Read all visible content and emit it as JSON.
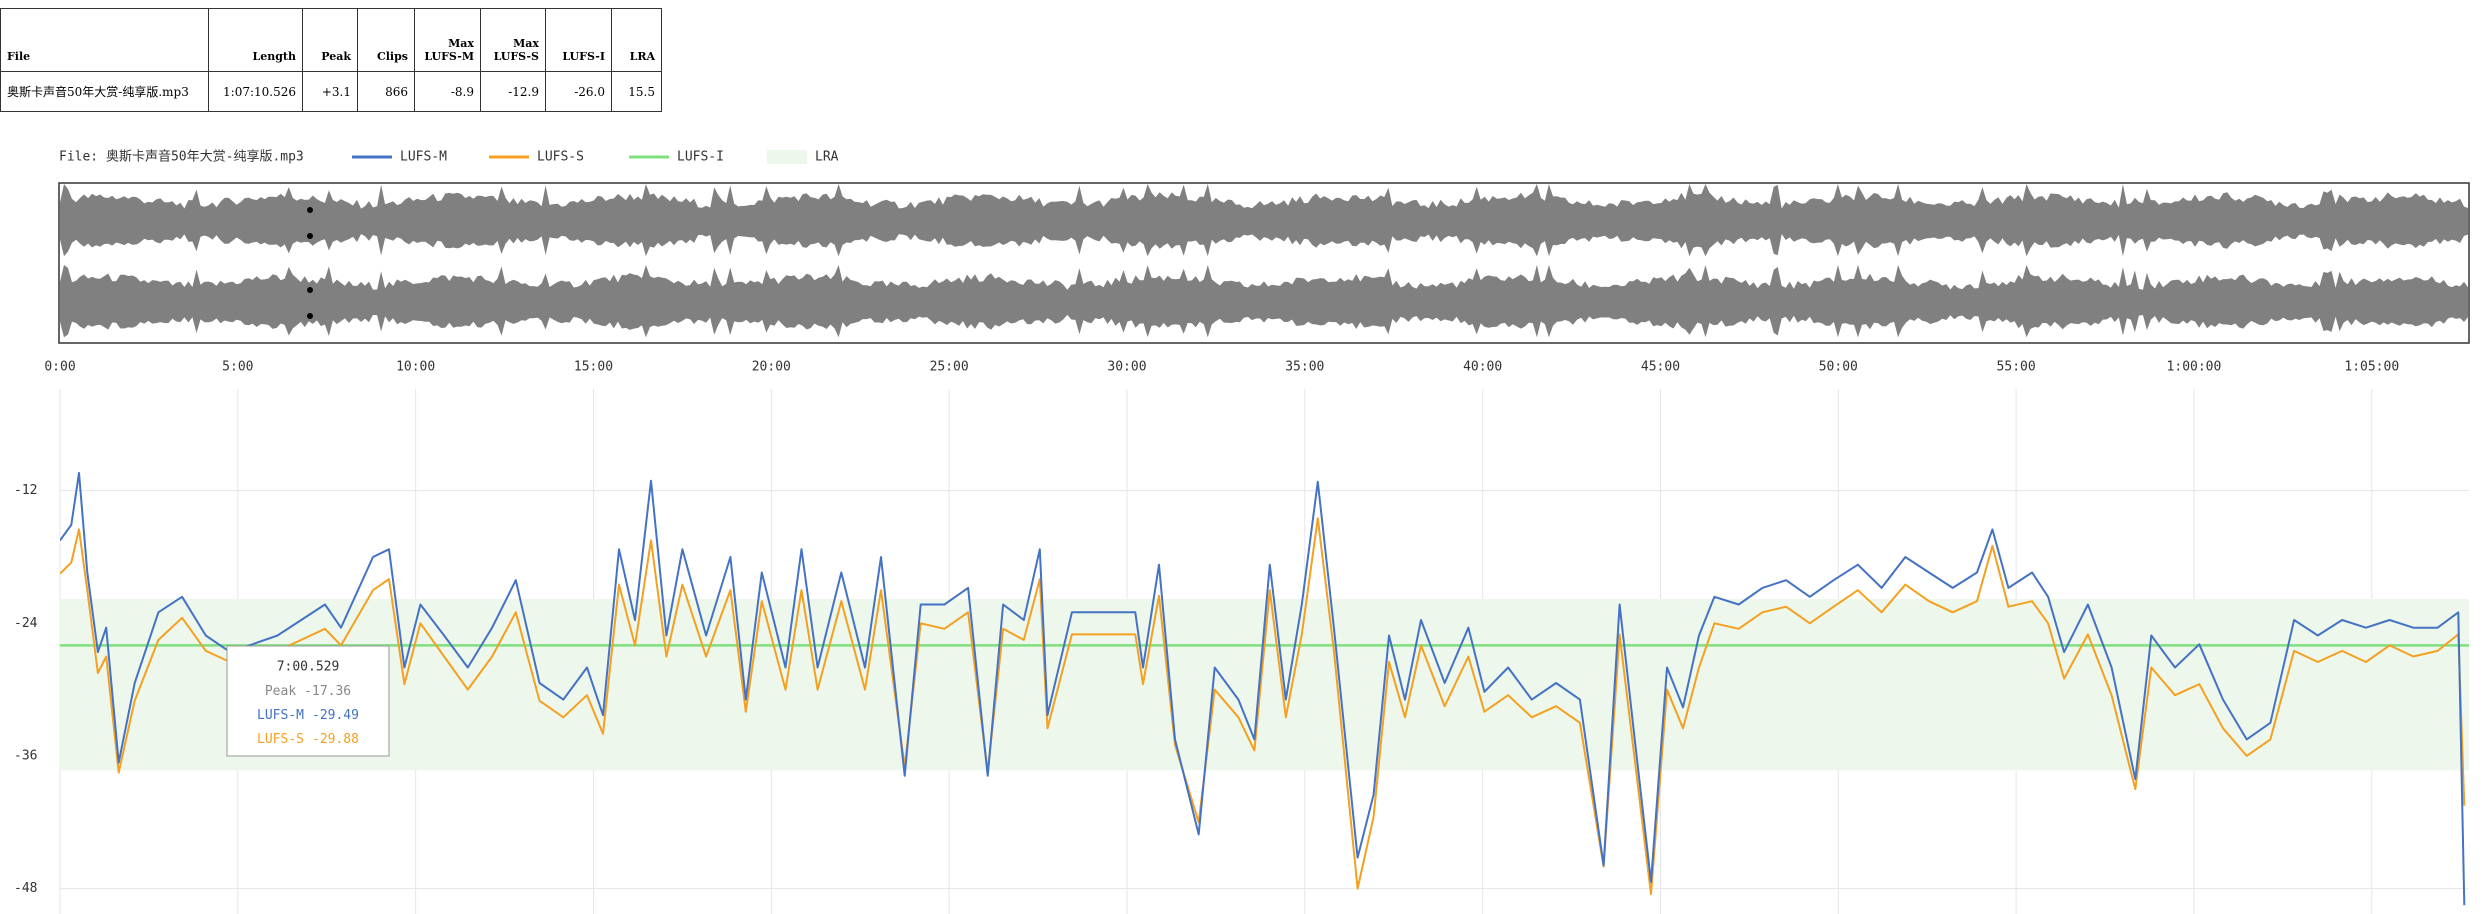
{
  "table": {
    "headers": [
      "File",
      "Length",
      "Peak",
      "Clips",
      "Max\nLUFS-M",
      "Max\nLUFS-S",
      "LUFS-I",
      "LRA"
    ],
    "rows": [
      [
        "奥斯卡声音50年大赏-纯享版.mp3",
        "1:07:10.526",
        "+3.1",
        "866",
        "-8.9",
        "-12.9",
        "-26.0",
        "15.5"
      ]
    ]
  },
  "chart_data": {
    "type": "line",
    "legend_title": "File: 奥斯卡声音50年大赏-纯享版.mp3",
    "x": [
      0,
      19,
      32,
      46,
      64,
      78,
      99,
      126,
      166,
      206,
      246,
      287,
      367,
      447,
      474,
      528,
      555,
      581,
      608,
      648,
      688,
      729,
      769,
      809,
      849,
      889,
      916,
      943,
      970,
      997,
      1023,
      1050,
      1090,
      1131,
      1157,
      1184,
      1224,
      1251,
      1278,
      1318,
      1358,
      1385,
      1425,
      1452,
      1492,
      1532,
      1565,
      1591,
      1626,
      1653,
      1666,
      1707,
      1747,
      1787,
      1814,
      1827,
      1854,
      1881,
      1921,
      1948,
      1988,
      2015,
      2041,
      2068,
      2095,
      2122,
      2149,
      2189,
      2216,
      2242,
      2269,
      2296,
      2336,
      2376,
      2403,
      2443,
      2483,
      2524,
      2564,
      2604,
      2631,
      2658,
      2684,
      2711,
      2738,
      2765,
      2791,
      2832,
      2872,
      2912,
      2952,
      2992,
      3033,
      3073,
      3113,
      3153,
      3193,
      3234,
      3260,
      3287,
      3327,
      3354,
      3381,
      3421,
      3461,
      3501,
      3528,
      3568,
      3609,
      3649,
      3689,
      3729,
      3769,
      3809,
      3850,
      3890,
      3930,
      3970,
      4011,
      4046,
      4056
    ],
    "xlim": [
      0,
      4064
    ],
    "xticks": [
      {
        "value": 0,
        "label": "0:00"
      },
      {
        "value": 300,
        "label": "5:00"
      },
      {
        "value": 600,
        "label": "10:00"
      },
      {
        "value": 900,
        "label": "15:00"
      },
      {
        "value": 1200,
        "label": "20:00"
      },
      {
        "value": 1500,
        "label": "25:00"
      },
      {
        "value": 1800,
        "label": "30:00"
      },
      {
        "value": 2100,
        "label": "35:00"
      },
      {
        "value": 2400,
        "label": "40:00"
      },
      {
        "value": 2700,
        "label": "45:00"
      },
      {
        "value": 3000,
        "label": "50:00"
      },
      {
        "value": 3300,
        "label": "55:00"
      },
      {
        "value": 3600,
        "label": "1:00:00"
      },
      {
        "value": 3900,
        "label": "1:05:00"
      }
    ],
    "ylim": [
      -50.3,
      -2.8
    ],
    "yticks": [
      -48,
      -36,
      -24,
      -12
    ],
    "grid": true,
    "series": [
      {
        "name": "LUFS-M",
        "color": "#4472c4",
        "values": [
          -16.5,
          -15.1,
          -10.4,
          -19.4,
          -26.6,
          -24.4,
          -36.6,
          -29.4,
          -23.0,
          -21.6,
          -25.1,
          -26.6,
          -25.1,
          -22.3,
          -24.4,
          -18.0,
          -17.3,
          -28.0,
          -22.3,
          -25.1,
          -28.0,
          -24.4,
          -20.1,
          -29.4,
          -30.9,
          -28.0,
          -32.3,
          -17.3,
          -23.7,
          -11.1,
          -25.1,
          -17.3,
          -25.1,
          -18.0,
          -30.9,
          -19.4,
          -28.0,
          -17.3,
          -28.0,
          -19.4,
          -28.0,
          -18.0,
          -37.8,
          -22.3,
          -22.3,
          -20.8,
          -37.8,
          -22.3,
          -23.7,
          -17.3,
          -32.3,
          -23.0,
          -23.0,
          -23.0,
          -23.0,
          -28.0,
          -18.7,
          -34.5,
          -43.1,
          -28.0,
          -30.9,
          -34.5,
          -18.7,
          -30.9,
          -22.3,
          -11.2,
          -24.4,
          -45.2,
          -39.5,
          -25.1,
          -30.9,
          -23.7,
          -29.4,
          -24.4,
          -30.2,
          -28.0,
          -30.9,
          -29.4,
          -30.9,
          -45.9,
          -22.3,
          -35.2,
          -47.4,
          -28.0,
          -31.6,
          -25.1,
          -21.6,
          -22.3,
          -20.8,
          -20.1,
          -21.6,
          -20.1,
          -18.7,
          -20.8,
          -18.0,
          -19.4,
          -20.8,
          -19.4,
          -15.5,
          -20.8,
          -19.4,
          -21.6,
          -26.6,
          -22.3,
          -28.0,
          -38.1,
          -25.1,
          -28.0,
          -25.9,
          -30.9,
          -34.5,
          -33.0,
          -23.7,
          -25.1,
          -23.7,
          -24.4,
          -23.7,
          -24.4,
          -24.4,
          -23.0,
          -49.5
        ]
      },
      {
        "name": "LUFS-S",
        "color": "#f4a020",
        "values": [
          -19.5,
          -18.5,
          -15.5,
          -21,
          -28.5,
          -27,
          -37.5,
          -31,
          -25.5,
          -23.5,
          -26.5,
          -27.5,
          -26.5,
          -24.5,
          -26,
          -21,
          -20,
          -29.5,
          -24,
          -27,
          -30,
          -27,
          -23,
          -31,
          -32.5,
          -30.5,
          -34,
          -20.5,
          -26,
          -16.5,
          -27,
          -20.5,
          -27,
          -21,
          -32,
          -22,
          -30,
          -21,
          -30,
          -22,
          -30,
          -21,
          -37,
          -24,
          -24.5,
          -23,
          -37.5,
          -24.5,
          -25.5,
          -20,
          -33.5,
          -25,
          -25,
          -25,
          -25,
          -29.5,
          -21.5,
          -35,
          -42,
          -30,
          -32.5,
          -35.5,
          -21,
          -32.5,
          -25,
          -14.5,
          -26.5,
          -48,
          -41.5,
          -27.5,
          -32.5,
          -26,
          -31.5,
          -27,
          -32,
          -30.5,
          -32.5,
          -31.5,
          -33,
          -46,
          -25,
          -37,
          -48.5,
          -30,
          -33.5,
          -28,
          -24,
          -24.5,
          -23,
          -22.5,
          -24,
          -22.5,
          -21,
          -23,
          -20.5,
          -22,
          -23,
          -22,
          -17,
          -22.5,
          -22,
          -24,
          -29,
          -25,
          -30.5,
          -39,
          -28,
          -30.5,
          -29.5,
          -33.5,
          -36,
          -34.5,
          -26.5,
          -27.5,
          -26.5,
          -27.5,
          -26,
          -27,
          -26.5,
          -25,
          -40.5
        ]
      }
    ],
    "lufs_i": {
      "name": "LUFS-I",
      "value": -26.0,
      "color": "#7ee07e"
    },
    "lra": {
      "name": "LRA",
      "range": [
        -37.3,
        -21.8
      ],
      "color": "#eef7ec"
    },
    "tooltip": {
      "time": "7:00.529",
      "lines": [
        {
          "label": "Peak",
          "value": -17.36,
          "color": "#888888"
        },
        {
          "label": "LUFS-M",
          "value": -29.49,
          "color": "#4472c4"
        },
        {
          "label": "LUFS-S",
          "value": -29.88,
          "color": "#f4a020"
        }
      ]
    }
  }
}
